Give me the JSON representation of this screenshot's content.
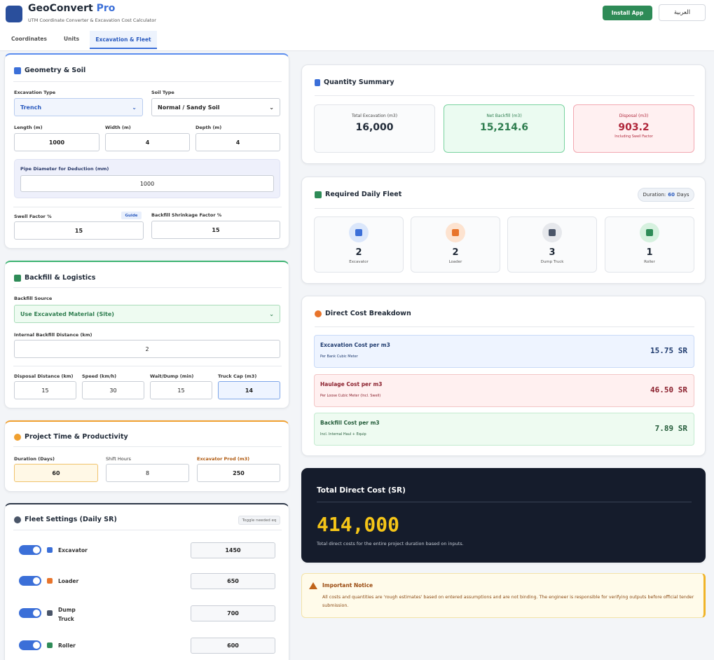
{
  "header": {
    "app_name": "GeoConvert",
    "app_badge": "Pro",
    "subtitle": "UTM Coordinate Converter & Excavation Cost Calculator",
    "install_button": "Install App",
    "language_button": "العربية"
  },
  "tabs": [
    "Coordinates",
    "Units",
    "Excavation & Fleet"
  ],
  "geometry": {
    "title": "Geometry & Soil",
    "excavation_type": {
      "label": "Excavation Type",
      "value": "Trench"
    },
    "soil_type": {
      "label": "Soil Type",
      "value": "Normal / Sandy Soil"
    },
    "length": {
      "label": "Length (m)",
      "value": 1000
    },
    "width": {
      "label": "Width (m)",
      "value": 4
    },
    "depth": {
      "label": "Depth (m)",
      "value": 4
    },
    "pipe_diameter": {
      "label": "Pipe Diameter for Deduction (mm)",
      "value": 1000
    },
    "swell_factor": {
      "label": "Swell Factor %",
      "value": 15
    },
    "guide_button": "Guide",
    "shrinkage_factor": {
      "label": "Backfill Shrinkage Factor %",
      "value": 15
    }
  },
  "backfill": {
    "title": "Backfill & Logistics",
    "source": {
      "label": "Backfill Source",
      "value": "Use Excavated Material (Site)"
    },
    "internal_distance": {
      "label": "Internal Backfill Distance (km)",
      "value": 2
    },
    "disposal_distance": {
      "label": "Disposal Distance (km)",
      "value": 15
    },
    "speed": {
      "label": "Speed (km/h)",
      "value": 30
    },
    "wait_dump": {
      "label": "Wait/Dump (min)",
      "value": 15
    },
    "truck_cap": {
      "label": "Truck Cap (m3)",
      "value": 14
    }
  },
  "project_time": {
    "title": "Project Time & Productivity",
    "duration": {
      "label": "Duration (Days)",
      "value": 60
    },
    "shift_hours": {
      "label": "Shift Hours",
      "value": 8
    },
    "excavator_prod": {
      "label": "Excavator Prod (m3)",
      "value": 250
    }
  },
  "fleet_settings": {
    "title": "Fleet Settings (Daily SR)",
    "hint": "Toggle needed eq",
    "items": [
      {
        "name": "Excavator",
        "rate": 1450
      },
      {
        "name": "Loader",
        "rate": 650
      },
      {
        "name": "Dump Truck",
        "rate": 700
      },
      {
        "name": "Roller",
        "rate": 600
      }
    ]
  },
  "quantity_summary": {
    "title": "Quantity Summary",
    "cards": [
      {
        "label": "Total Excavation (m3)",
        "value": "16,000"
      },
      {
        "label": "Net Backfill (m3)",
        "value": "15,214.6"
      },
      {
        "label": "Disposal (m3)",
        "value": "903.2",
        "note": "Including Swell Factor"
      }
    ]
  },
  "daily_fleet": {
    "title": "Required Daily Fleet",
    "duration_label": "Duration:",
    "duration_value": 60,
    "duration_unit": "Days",
    "units": [
      {
        "count": 2,
        "name": "Excavator"
      },
      {
        "count": 2,
        "name": "Loader"
      },
      {
        "count": 3,
        "name": "Dump Truck"
      },
      {
        "count": 1,
        "name": "Roller"
      }
    ]
  },
  "cost_breakdown": {
    "title": "Direct Cost Breakdown",
    "items": [
      {
        "label": "Excavation Cost per m3",
        "note": "Per Bank Cubic Meter",
        "value": "15.75 SR"
      },
      {
        "label": "Haulage Cost per m3",
        "note": "Per Loose Cubic Meter (Incl. Swell)",
        "value": "46.50 SR"
      },
      {
        "label": "Backfill Cost per m3",
        "note": "Incl. Internal Haul + Equip",
        "value": "7.89 SR"
      }
    ]
  },
  "total": {
    "title": "Total Direct Cost (SR)",
    "value": "414,000",
    "note": "Total direct costs for the entire project duration based on inputs."
  },
  "notice": {
    "title": "Important Notice",
    "text": "All costs and quantities are 'rough estimates' based on entered assumptions and are not binding. The engineer is responsible for verifying outputs before official tender submission."
  }
}
